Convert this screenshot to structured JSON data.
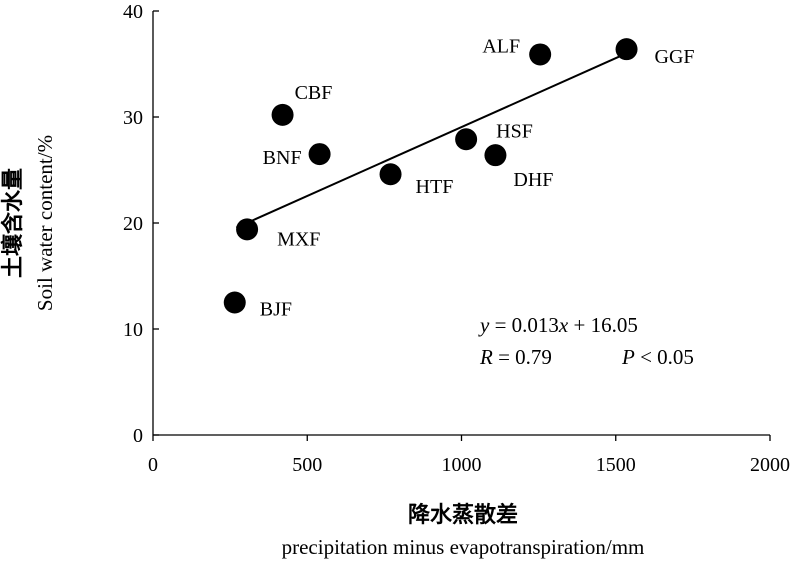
{
  "chart_data": {
    "type": "scatter",
    "xlabel_zh": "降水蒸散差",
    "xlabel_en": "precipitation minus evapotranspiration/mm",
    "ylabel_zh": "土壤含水量",
    "ylabel_en": "Soil water content/%",
    "xlim": [
      0,
      2000
    ],
    "ylim": [
      0,
      40
    ],
    "xticks": [
      "0",
      "500",
      "1000",
      "1500",
      "2000"
    ],
    "yticks": [
      "0",
      "10",
      "20",
      "30",
      "40"
    ],
    "grid": false,
    "points": [
      {
        "label": "ALF",
        "x": 1255,
        "y": 35.9
      },
      {
        "label": "GGF",
        "x": 1535,
        "y": 36.4
      },
      {
        "label": "CBF",
        "x": 420,
        "y": 30.2
      },
      {
        "label": "BNF",
        "x": 540,
        "y": 26.5
      },
      {
        "label": "HSF",
        "x": 1015,
        "y": 27.9
      },
      {
        "label": "DHF",
        "x": 1110,
        "y": 26.4
      },
      {
        "label": "HTF",
        "x": 770,
        "y": 24.6
      },
      {
        "label": "MXF",
        "x": 305,
        "y": 19.4
      },
      {
        "label": "BJF",
        "x": 265,
        "y": 12.5
      }
    ],
    "fit": {
      "x_start": 270,
      "x_end": 1535,
      "slope": 0.013,
      "intercept": 16.05
    },
    "annotation": {
      "equation": [
        "y",
        " = 0.013",
        "x",
        " + 16.05"
      ],
      "stats_r": [
        "R",
        " = 0.79"
      ],
      "stats_p": [
        "P",
        " < 0.05"
      ]
    }
  }
}
